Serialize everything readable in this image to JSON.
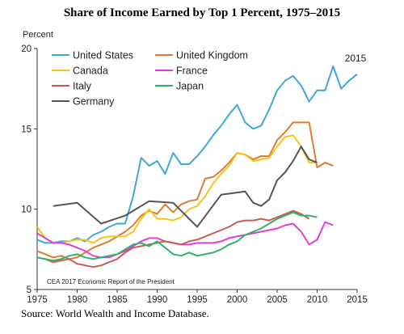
{
  "chart_data": {
    "type": "line",
    "title": "Share of Income Earned by Top 1 Percent, 1975–2015",
    "ylabel": "Percent",
    "xlabel": "",
    "xlim": [
      1975,
      2015
    ],
    "ylim": [
      5,
      20
    ],
    "x_ticks": [
      "1975",
      "1980",
      "1985",
      "1990",
      "1995",
      "2000",
      "2005",
      "2010",
      "2015"
    ],
    "y_ticks": [
      "5",
      "10",
      "15",
      "20"
    ],
    "annotation": "2015",
    "credit": "CEA 2017 Economic Report of the President",
    "source": "Source: World Wealth and Income Database.",
    "legend_position": "top-left",
    "series": [
      {
        "name": "United States",
        "color": "#3fa9d6",
        "points": [
          [
            1975,
            8.1
          ],
          [
            1976,
            7.9
          ],
          [
            1977,
            7.9
          ],
          [
            1978,
            8.0
          ],
          [
            1979,
            8.0
          ],
          [
            1980,
            8.2
          ],
          [
            1981,
            8.0
          ],
          [
            1982,
            8.4
          ],
          [
            1983,
            8.6
          ],
          [
            1984,
            8.9
          ],
          [
            1985,
            9.1
          ],
          [
            1986,
            9.1
          ],
          [
            1987,
            10.8
          ],
          [
            1988,
            13.2
          ],
          [
            1989,
            12.7
          ],
          [
            1990,
            13.0
          ],
          [
            1991,
            12.2
          ],
          [
            1992,
            13.5
          ],
          [
            1993,
            12.8
          ],
          [
            1994,
            12.8
          ],
          [
            1995,
            13.3
          ],
          [
            1996,
            13.9
          ],
          [
            1997,
            14.6
          ],
          [
            1998,
            15.2
          ],
          [
            1999,
            15.9
          ],
          [
            2000,
            16.5
          ],
          [
            2001,
            15.4
          ],
          [
            2002,
            15.0
          ],
          [
            2003,
            15.2
          ],
          [
            2004,
            16.2
          ],
          [
            2005,
            17.4
          ],
          [
            2006,
            18.0
          ],
          [
            2007,
            18.3
          ],
          [
            2008,
            17.7
          ],
          [
            2009,
            16.7
          ],
          [
            2010,
            17.4
          ],
          [
            2011,
            17.4
          ],
          [
            2012,
            18.9
          ],
          [
            2013,
            17.5
          ],
          [
            2014,
            18.0
          ],
          [
            2015,
            18.4
          ]
        ]
      },
      {
        "name": "United Kingdom",
        "color": "#e07a2e",
        "points": [
          [
            1975,
            7.4
          ],
          [
            1976,
            7.2
          ],
          [
            1977,
            7.0
          ],
          [
            1978,
            7.1
          ],
          [
            1979,
            6.9
          ],
          [
            1980,
            7.0
          ],
          [
            1981,
            7.3
          ],
          [
            1982,
            7.6
          ],
          [
            1983,
            7.8
          ],
          [
            1984,
            8.0
          ],
          [
            1985,
            8.3
          ],
          [
            1986,
            8.6
          ],
          [
            1987,
            9.0
          ],
          [
            1988,
            9.6
          ],
          [
            1989,
            9.9
          ],
          [
            1990,
            9.7
          ],
          [
            1991,
            10.3
          ],
          [
            1992,
            9.8
          ],
          [
            1993,
            10.3
          ],
          [
            1994,
            10.5
          ],
          [
            1995,
            10.6
          ],
          [
            1996,
            11.9
          ],
          [
            1997,
            12.0
          ],
          [
            1998,
            12.4
          ],
          [
            1999,
            12.9
          ],
          [
            2000,
            13.5
          ],
          [
            2001,
            13.4
          ],
          [
            2002,
            13.1
          ],
          [
            2003,
            13.3
          ],
          [
            2004,
            13.3
          ],
          [
            2005,
            14.3
          ],
          [
            2006,
            14.8
          ],
          [
            2007,
            15.4
          ],
          [
            2008,
            15.4
          ],
          [
            2009,
            15.4
          ],
          [
            2010,
            12.6
          ],
          [
            2011,
            12.9
          ],
          [
            2012,
            12.7
          ]
        ]
      },
      {
        "name": "Canada",
        "color": "#f5c518",
        "points": [
          [
            1975,
            8.9
          ],
          [
            1976,
            8.2
          ],
          [
            1977,
            7.9
          ],
          [
            1978,
            7.9
          ],
          [
            1979,
            8.0
          ],
          [
            1980,
            8.1
          ],
          [
            1981,
            8.1
          ],
          [
            1982,
            7.9
          ],
          [
            1983,
            8.2
          ],
          [
            1984,
            8.3
          ],
          [
            1985,
            8.3
          ],
          [
            1986,
            8.3
          ],
          [
            1987,
            8.6
          ],
          [
            1988,
            9.4
          ],
          [
            1989,
            10.0
          ],
          [
            1990,
            9.4
          ],
          [
            1991,
            9.4
          ],
          [
            1992,
            9.3
          ],
          [
            1993,
            9.5
          ],
          [
            1994,
            10.0
          ],
          [
            1995,
            10.2
          ],
          [
            1996,
            10.8
          ],
          [
            1997,
            11.6
          ],
          [
            1998,
            12.2
          ],
          [
            1999,
            12.7
          ],
          [
            2000,
            13.5
          ],
          [
            2001,
            13.4
          ],
          [
            2002,
            13.0
          ],
          [
            2003,
            13.1
          ],
          [
            2004,
            13.2
          ],
          [
            2005,
            13.9
          ],
          [
            2006,
            14.5
          ],
          [
            2007,
            14.6
          ],
          [
            2008,
            13.9
          ],
          [
            2009,
            12.9
          ],
          [
            2010,
            12.9
          ]
        ]
      },
      {
        "name": "France",
        "color": "#e040d8",
        "points": [
          [
            1975,
            8.5
          ],
          [
            1976,
            8.2
          ],
          [
            1977,
            7.9
          ],
          [
            1978,
            7.9
          ],
          [
            1979,
            7.8
          ],
          [
            1980,
            7.6
          ],
          [
            1981,
            7.4
          ],
          [
            1982,
            7.1
          ],
          [
            1983,
            7.0
          ],
          [
            1984,
            7.0
          ],
          [
            1985,
            7.2
          ],
          [
            1986,
            7.4
          ],
          [
            1987,
            7.7
          ],
          [
            1988,
            8.0
          ],
          [
            1989,
            8.2
          ],
          [
            1990,
            8.2
          ],
          [
            1991,
            8.0
          ],
          [
            1992,
            7.9
          ],
          [
            1993,
            7.8
          ],
          [
            1994,
            7.8
          ],
          [
            1995,
            7.9
          ],
          [
            1996,
            7.9
          ],
          [
            1997,
            7.9
          ],
          [
            1998,
            8.0
          ],
          [
            1999,
            8.2
          ],
          [
            2000,
            8.3
          ],
          [
            2001,
            8.4
          ],
          [
            2002,
            8.5
          ],
          [
            2003,
            8.6
          ],
          [
            2004,
            8.7
          ],
          [
            2005,
            8.8
          ],
          [
            2006,
            9.0
          ],
          [
            2007,
            9.1
          ],
          [
            2008,
            8.6
          ],
          [
            2009,
            7.8
          ],
          [
            2010,
            8.1
          ],
          [
            2011,
            9.2
          ],
          [
            2012,
            9.0
          ]
        ]
      },
      {
        "name": "Italy",
        "color": "#c85c55",
        "points": [
          [
            1975,
            7.0
          ],
          [
            1976,
            6.9
          ],
          [
            1977,
            6.7
          ],
          [
            1978,
            6.8
          ],
          [
            1979,
            6.9
          ],
          [
            1980,
            6.6
          ],
          [
            1981,
            6.5
          ],
          [
            1982,
            6.4
          ],
          [
            1983,
            6.5
          ],
          [
            1984,
            6.7
          ],
          [
            1985,
            6.9
          ],
          [
            1986,
            7.3
          ],
          [
            1987,
            7.6
          ],
          [
            1988,
            7.7
          ],
          [
            1989,
            7.8
          ],
          [
            1990,
            7.9
          ],
          [
            1991,
            8.0
          ],
          [
            1992,
            7.9
          ],
          [
            1993,
            7.8
          ],
          [
            1994,
            8.0
          ],
          [
            1995,
            8.1
          ],
          [
            1996,
            8.3
          ],
          [
            1997,
            8.5
          ],
          [
            1998,
            8.7
          ],
          [
            1999,
            8.9
          ],
          [
            2000,
            9.2
          ],
          [
            2001,
            9.3
          ],
          [
            2002,
            9.3
          ],
          [
            2003,
            9.4
          ],
          [
            2004,
            9.3
          ],
          [
            2005,
            9.5
          ],
          [
            2006,
            9.7
          ],
          [
            2007,
            9.9
          ],
          [
            2008,
            9.7
          ],
          [
            2009,
            9.4
          ]
        ]
      },
      {
        "name": "Japan",
        "color": "#2fb36a",
        "points": [
          [
            1975,
            7.0
          ],
          [
            1976,
            6.9
          ],
          [
            1977,
            6.8
          ],
          [
            1978,
            6.9
          ],
          [
            1979,
            7.1
          ],
          [
            1980,
            7.2
          ],
          [
            1981,
            7.0
          ],
          [
            1982,
            6.9
          ],
          [
            1983,
            7.0
          ],
          [
            1984,
            7.1
          ],
          [
            1985,
            7.2
          ],
          [
            1986,
            7.5
          ],
          [
            1987,
            7.8
          ],
          [
            1988,
            7.9
          ],
          [
            1989,
            7.7
          ],
          [
            1990,
            8.0
          ],
          [
            1991,
            7.6
          ],
          [
            1992,
            7.2
          ],
          [
            1993,
            7.1
          ],
          [
            1994,
            7.3
          ],
          [
            1995,
            7.1
          ],
          [
            1996,
            7.2
          ],
          [
            1997,
            7.3
          ],
          [
            1998,
            7.5
          ],
          [
            1999,
            7.8
          ],
          [
            2000,
            8.0
          ],
          [
            2001,
            8.4
          ],
          [
            2002,
            8.6
          ],
          [
            2003,
            8.8
          ],
          [
            2004,
            9.1
          ],
          [
            2005,
            9.4
          ],
          [
            2006,
            9.6
          ],
          [
            2007,
            9.8
          ],
          [
            2008,
            9.6
          ],
          [
            2009,
            9.6
          ],
          [
            2010,
            9.5
          ]
        ]
      },
      {
        "name": "Germany",
        "color": "#555555",
        "points": [
          [
            1977,
            10.2
          ],
          [
            1980,
            10.4
          ],
          [
            1983,
            9.1
          ],
          [
            1986,
            9.6
          ],
          [
            1989,
            10.5
          ],
          [
            1992,
            10.4
          ],
          [
            1995,
            8.9
          ],
          [
            1998,
            10.9
          ],
          [
            2001,
            11.1
          ],
          [
            2002,
            10.4
          ],
          [
            2003,
            10.2
          ],
          [
            2004,
            10.6
          ],
          [
            2005,
            11.8
          ],
          [
            2006,
            12.3
          ],
          [
            2007,
            13.0
          ],
          [
            2008,
            13.9
          ],
          [
            2009,
            13.1
          ],
          [
            2010,
            12.9
          ]
        ]
      }
    ]
  }
}
